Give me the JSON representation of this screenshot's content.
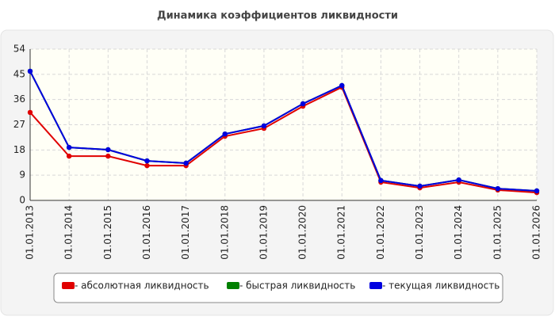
{
  "chart_data": {
    "type": "line",
    "title": "Динамика коэффициентов ликвидности",
    "categories": [
      "01.01.2013",
      "01.01.2014",
      "01.01.2015",
      "01.01.2016",
      "01.01.2017",
      "01.01.2018",
      "01.01.2019",
      "01.01.2020",
      "01.01.2021",
      "01.01.2022",
      "01.01.2023",
      "01.01.2024",
      "01.01.2025",
      "01.01.2026"
    ],
    "series": [
      {
        "name": "- абсолютная ликвидность",
        "color": "#e00000",
        "values": [
          31.4,
          15.8,
          15.8,
          12.4,
          12.4,
          22.9,
          25.7,
          33.6,
          40.4,
          6.5,
          4.5,
          6.5,
          3.7,
          2.8
        ]
      },
      {
        "name": "- быстрая ликвидность",
        "color": "#008000",
        "values": [
          46.1,
          18.9,
          18.1,
          14.1,
          13.3,
          23.7,
          26.6,
          34.5,
          41.0,
          7.1,
          5.1,
          7.3,
          4.2,
          3.4
        ]
      },
      {
        "name": "- текущая ликвидность",
        "color": "#0000e0",
        "values": [
          46.1,
          18.9,
          18.1,
          14.1,
          13.3,
          23.7,
          26.6,
          34.5,
          41.0,
          7.1,
          5.1,
          7.3,
          4.2,
          3.4
        ]
      }
    ],
    "ylim": [
      0,
      54
    ],
    "yticks": [
      0,
      9,
      18,
      27,
      36,
      45,
      54
    ],
    "grid": true
  }
}
